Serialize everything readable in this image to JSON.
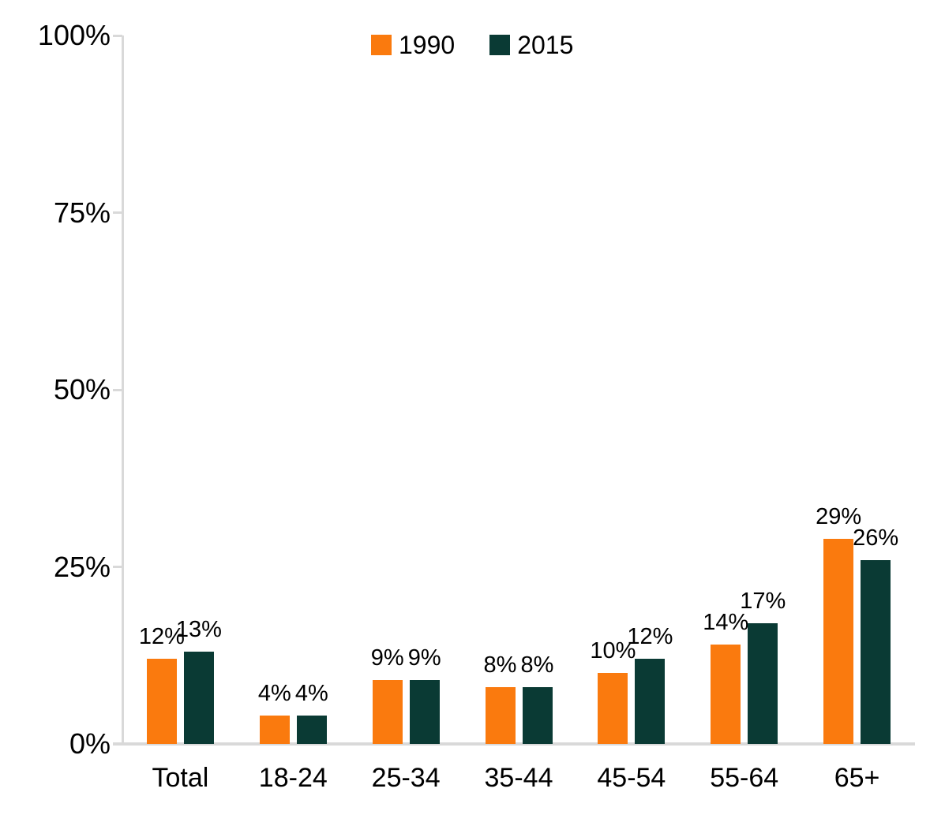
{
  "chart_data": {
    "type": "bar",
    "title": "",
    "xlabel": "",
    "ylabel": "",
    "categories": [
      "Total",
      "18-24",
      "25-34",
      "35-44",
      "45-54",
      "55-64",
      "65+"
    ],
    "series": [
      {
        "name": "1990",
        "color": "#FA7A0E",
        "values": [
          12,
          4,
          9,
          8,
          10,
          14,
          29
        ],
        "labels": [
          "12%",
          "4%",
          "9%",
          "8%",
          "10%",
          "14%",
          "29%"
        ]
      },
      {
        "name": "2015",
        "color": "#0A3A34",
        "values": [
          13,
          4,
          9,
          8,
          12,
          17,
          26
        ],
        "labels": [
          "13%",
          "4%",
          "9%",
          "8%",
          "12%",
          "17%",
          "26%"
        ]
      }
    ],
    "ylim": [
      0,
      100
    ],
    "y_ticks": [
      {
        "value": 100,
        "label": "100%"
      },
      {
        "value": 75,
        "label": "75%"
      },
      {
        "value": 50,
        "label": "50%"
      },
      {
        "value": 25,
        "label": "25%"
      },
      {
        "value": 0,
        "label": "0%"
      }
    ],
    "legend_position": "top-center",
    "grid": false,
    "data_labels": true,
    "axis_color": "#D9D9D9",
    "text_color": "#000000",
    "background_color": "#FFFFFF"
  }
}
